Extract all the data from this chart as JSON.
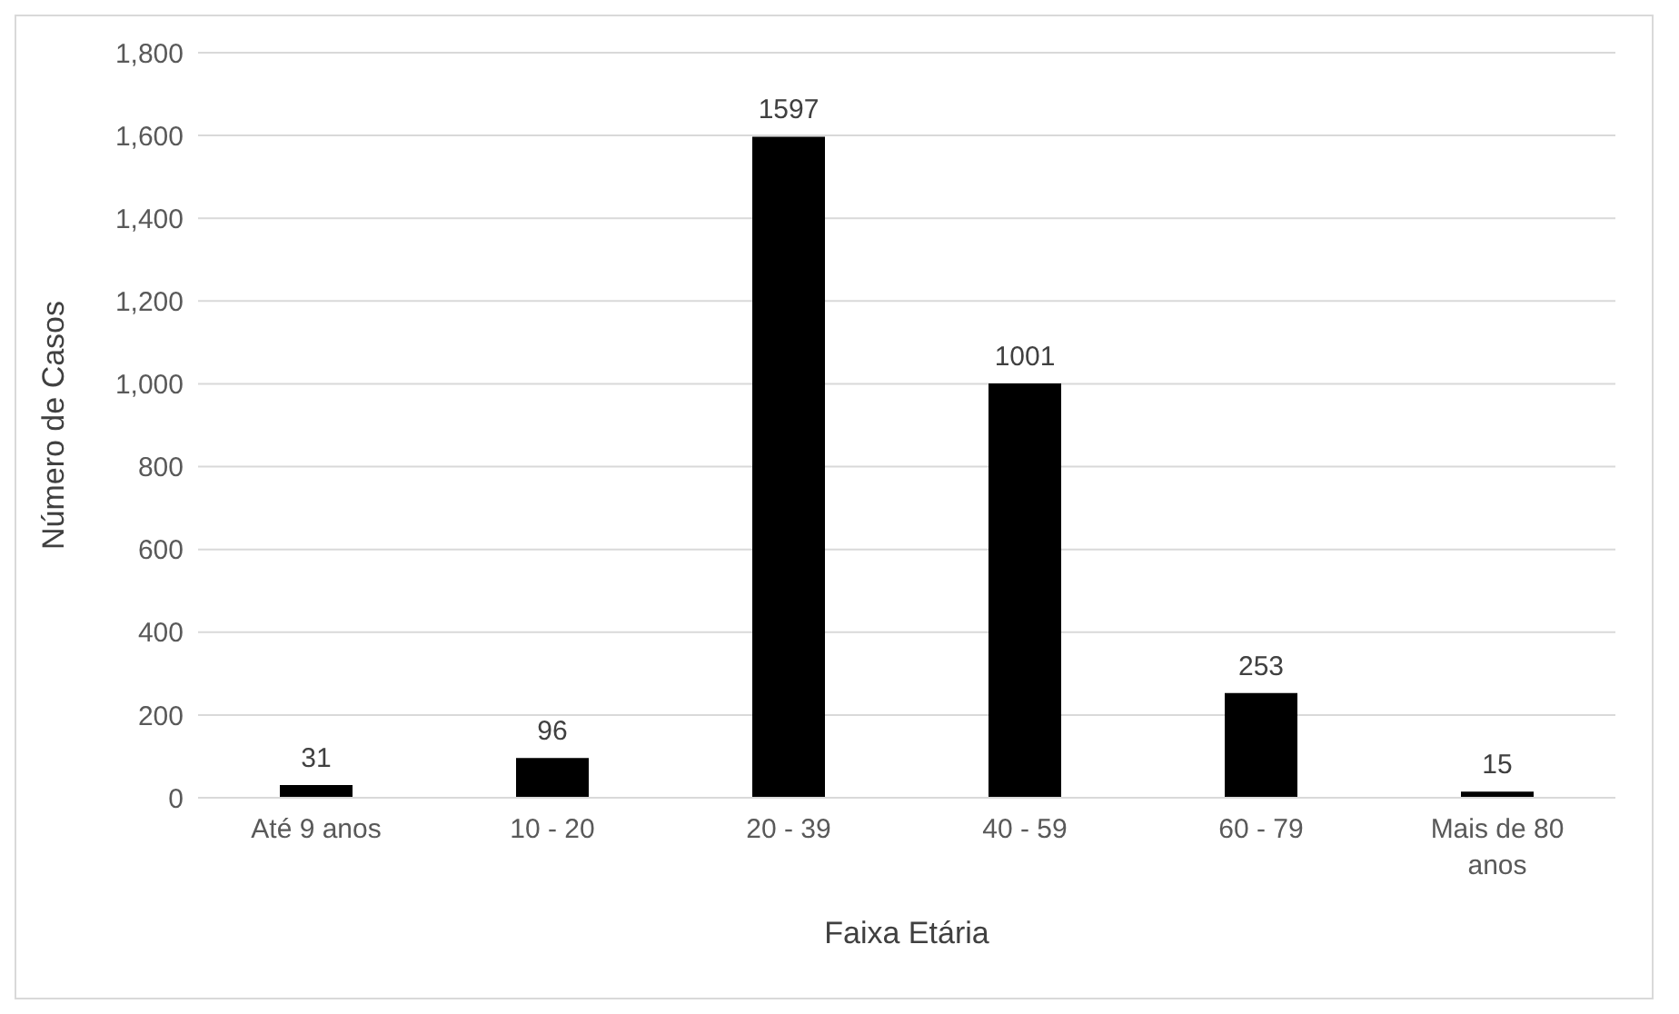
{
  "chart_data": {
    "type": "bar",
    "xlabel": "Faixa Etária",
    "ylabel": "Número de Casos",
    "categories": [
      "Até 9 anos",
      "10 - 20",
      "20 - 39",
      "40 - 59",
      "60 - 79",
      "Mais de 80 anos"
    ],
    "values": [
      31,
      96,
      1597,
      1001,
      253,
      15
    ],
    "color": "#000000",
    "ylim": [
      0,
      1800
    ],
    "yticks": [
      0,
      200,
      400,
      600,
      800,
      {
        "value": 1000,
        "label": "1,000"
      },
      {
        "value": 1200,
        "label": "1,200"
      },
      {
        "value": 1400,
        "label": "1,400"
      },
      {
        "value": 1600,
        "label": "1,600"
      },
      {
        "value": 1800,
        "label": "1,800"
      }
    ],
    "grid": "y",
    "data_labels": true,
    "legend": false
  }
}
